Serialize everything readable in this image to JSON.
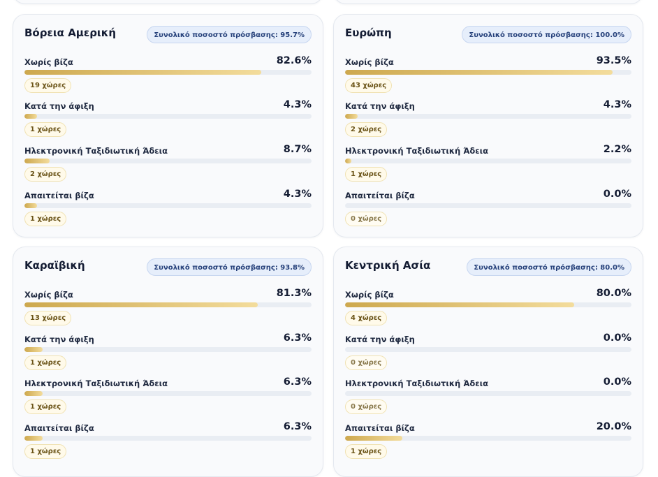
{
  "regions": [
    {
      "name": "Βόρεια Αμερική",
      "access_label": "Συνολικό ποσοστό πρόσβασης: 95.7%",
      "rows": [
        {
          "label": "Χωρίς βίζα",
          "percent": 82.6,
          "percent_text": "82.6%",
          "count_text": "19 χώρες"
        },
        {
          "label": "Κατά την άφιξη",
          "percent": 4.3,
          "percent_text": "4.3%",
          "count_text": "1 χώρες"
        },
        {
          "label": "Ηλεκτρονική Ταξιδιωτική Άδεια",
          "percent": 8.7,
          "percent_text": "8.7%",
          "count_text": "2 χώρες"
        },
        {
          "label": "Απαιτείται βίζα",
          "percent": 4.3,
          "percent_text": "4.3%",
          "count_text": "1 χώρες"
        }
      ]
    },
    {
      "name": "Ευρώπη",
      "access_label": "Συνολικό ποσοστό πρόσβασης: 100.0%",
      "rows": [
        {
          "label": "Χωρίς βίζα",
          "percent": 93.5,
          "percent_text": "93.5%",
          "count_text": "43 χώρες"
        },
        {
          "label": "Κατά την άφιξη",
          "percent": 4.3,
          "percent_text": "4.3%",
          "count_text": "2 χώρες"
        },
        {
          "label": "Ηλεκτρονική Ταξιδιωτική Άδεια",
          "percent": 2.2,
          "percent_text": "2.2%",
          "count_text": "1 χώρες"
        },
        {
          "label": "Απαιτείται βίζα",
          "percent": 0.0,
          "percent_text": "0.0%",
          "count_text": "0 χώρες"
        }
      ]
    },
    {
      "name": "Καραϊβική",
      "access_label": "Συνολικό ποσοστό πρόσβασης: 93.8%",
      "rows": [
        {
          "label": "Χωρίς βίζα",
          "percent": 81.3,
          "percent_text": "81.3%",
          "count_text": "13 χώρες"
        },
        {
          "label": "Κατά την άφιξη",
          "percent": 6.3,
          "percent_text": "6.3%",
          "count_text": "1 χώρες"
        },
        {
          "label": "Ηλεκτρονική Ταξιδιωτική Άδεια",
          "percent": 6.3,
          "percent_text": "6.3%",
          "count_text": "1 χώρες"
        },
        {
          "label": "Απαιτείται βίζα",
          "percent": 6.3,
          "percent_text": "6.3%",
          "count_text": "1 χώρες"
        }
      ]
    },
    {
      "name": "Κεντρική Ασία",
      "access_label": "Συνολικό ποσοστό πρόσβασης: 80.0%",
      "rows": [
        {
          "label": "Χωρίς βίζα",
          "percent": 80.0,
          "percent_text": "80.0%",
          "count_text": "4 χώρες"
        },
        {
          "label": "Κατά την άφιξη",
          "percent": 0.0,
          "percent_text": "0.0%",
          "count_text": "0 χώρες"
        },
        {
          "label": "Ηλεκτρονική Ταξιδιωτική Άδεια",
          "percent": 0.0,
          "percent_text": "0.0%",
          "count_text": "0 χώρες"
        },
        {
          "label": "Απαιτείται βίζα",
          "percent": 20.0,
          "percent_text": "20.0%",
          "count_text": "1 χώρες"
        }
      ]
    }
  ]
}
